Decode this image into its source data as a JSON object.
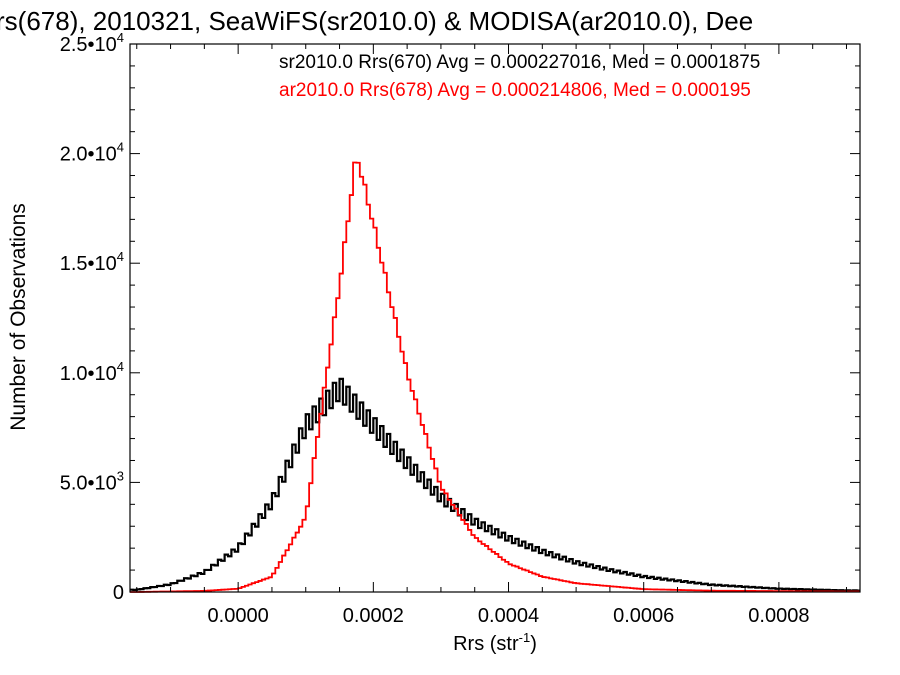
{
  "chart_data": {
    "type": "histogram",
    "title": "rs(678), 2010321, SeaWiFS(sr2010.0) & MODISA(ar2010.0), Dee",
    "xlabel": "Rrs (str",
    "xlabel_sup": "-1",
    "xlabel_close": ")",
    "ylabel": "Number of Observations",
    "xlim": [
      -0.00016,
      0.00092
    ],
    "ylim": [
      0,
      25000
    ],
    "x_ticks": [
      {
        "value": 0.0,
        "label": "0.0000"
      },
      {
        "value": 0.0002,
        "label": "0.0002"
      },
      {
        "value": 0.0004,
        "label": "0.0004"
      },
      {
        "value": 0.0006,
        "label": "0.0006"
      },
      {
        "value": 0.0008,
        "label": "0.0008"
      }
    ],
    "y_ticks": [
      {
        "value": 0,
        "mant": "0",
        "exp": ""
      },
      {
        "value": 5000,
        "mant": "5.0•10",
        "exp": "3"
      },
      {
        "value": 10000,
        "mant": "1.0•10",
        "exp": "4"
      },
      {
        "value": 15000,
        "mant": "1.5•10",
        "exp": "4"
      },
      {
        "value": 20000,
        "mant": "2.0•10",
        "exp": "4"
      },
      {
        "value": 25000,
        "mant": "2.5•10",
        "exp": "4"
      }
    ],
    "bin_width": 5e-06,
    "series": [
      {
        "name": "sr2010.0 Rrs(670) Avg = 0.000227016, Med = 0.0001875",
        "color": "#000000",
        "profile": "wide",
        "peak": {
          "x": 0.000145,
          "y": 9300
        },
        "sample_points": [
          {
            "x": -0.00015,
            "y": 100
          },
          {
            "x": -0.0001,
            "y": 350
          },
          {
            "x": -5e-05,
            "y": 900
          },
          {
            "x": 0.0,
            "y": 2000
          },
          {
            "x": 5e-05,
            "y": 4100
          },
          {
            "x": 0.0001,
            "y": 7600
          },
          {
            "x": 0.00015,
            "y": 9300
          },
          {
            "x": 0.0002,
            "y": 7600
          },
          {
            "x": 0.00025,
            "y": 5900
          },
          {
            "x": 0.0003,
            "y": 4300
          },
          {
            "x": 0.00035,
            "y": 3200
          },
          {
            "x": 0.0004,
            "y": 2450
          },
          {
            "x": 0.00045,
            "y": 1850
          },
          {
            "x": 0.0005,
            "y": 1350
          },
          {
            "x": 0.00055,
            "y": 1000
          },
          {
            "x": 0.0006,
            "y": 700
          },
          {
            "x": 0.0007,
            "y": 330
          },
          {
            "x": 0.0008,
            "y": 150
          },
          {
            "x": 0.0009,
            "y": 70
          }
        ]
      },
      {
        "name": "ar2010.0 Rrs(678) Avg = 0.000214806, Med = 0.000195",
        "color": "#ff0000",
        "profile": "peaked",
        "peak": {
          "x": 0.000175,
          "y": 20000
        },
        "sample_points": [
          {
            "x": -0.00015,
            "y": 0
          },
          {
            "x": -5e-05,
            "y": 50
          },
          {
            "x": 0.0,
            "y": 150
          },
          {
            "x": 5e-05,
            "y": 700
          },
          {
            "x": 0.0001,
            "y": 3400
          },
          {
            "x": 0.00015,
            "y": 14000
          },
          {
            "x": 0.000175,
            "y": 20000
          },
          {
            "x": 0.0002,
            "y": 16800
          },
          {
            "x": 0.00025,
            "y": 10000
          },
          {
            "x": 0.0003,
            "y": 4800
          },
          {
            "x": 0.00035,
            "y": 2500
          },
          {
            "x": 0.0004,
            "y": 1300
          },
          {
            "x": 0.00045,
            "y": 700
          },
          {
            "x": 0.0005,
            "y": 400
          },
          {
            "x": 0.0006,
            "y": 130
          },
          {
            "x": 0.0007,
            "y": 60
          },
          {
            "x": 0.0009,
            "y": 20
          }
        ]
      }
    ],
    "grid": false,
    "legend_position": "top-right"
  }
}
